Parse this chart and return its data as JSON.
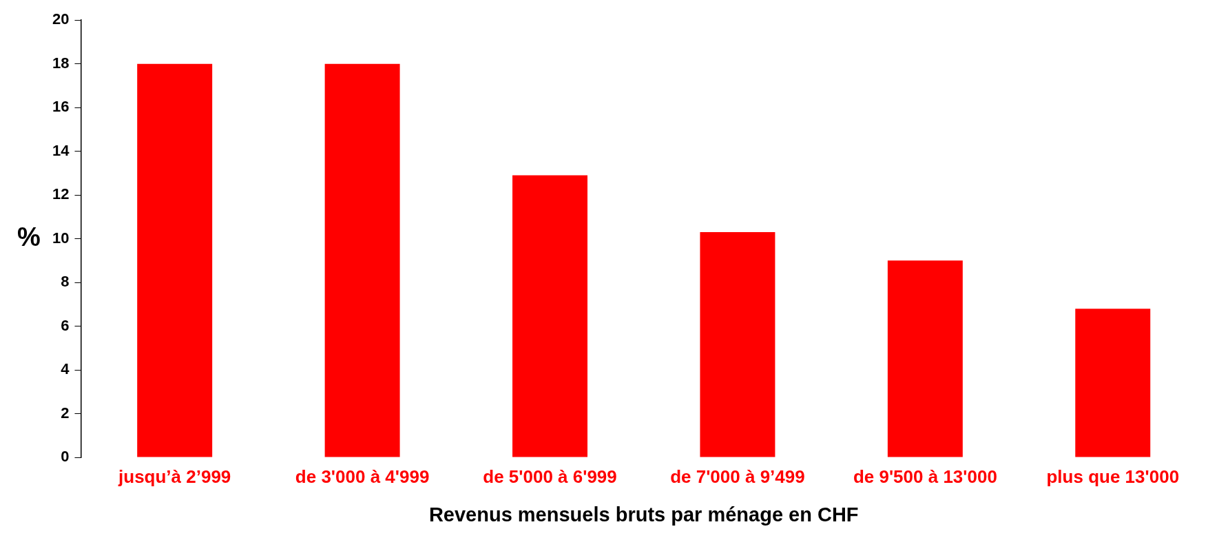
{
  "chart_data": {
    "type": "bar",
    "xlabel": "Revenus mensuels bruts par ménage en CHF",
    "ylabel": "%",
    "categories": [
      "jusqu’à 2’999",
      "de 3'000 à 4'999",
      "de 5'000 à 6'999",
      "de 7'000 à 9’499",
      "de 9'500 à 13'000",
      "plus que 13'000"
    ],
    "values": [
      18,
      18,
      12.9,
      10.3,
      9.0,
      6.8
    ],
    "color": "#ff0000",
    "ylim": [
      0,
      20
    ],
    "yticks": [
      0,
      2,
      4,
      6,
      8,
      10,
      12,
      14,
      16,
      18,
      20
    ],
    "grid": false,
    "legend": false
  }
}
